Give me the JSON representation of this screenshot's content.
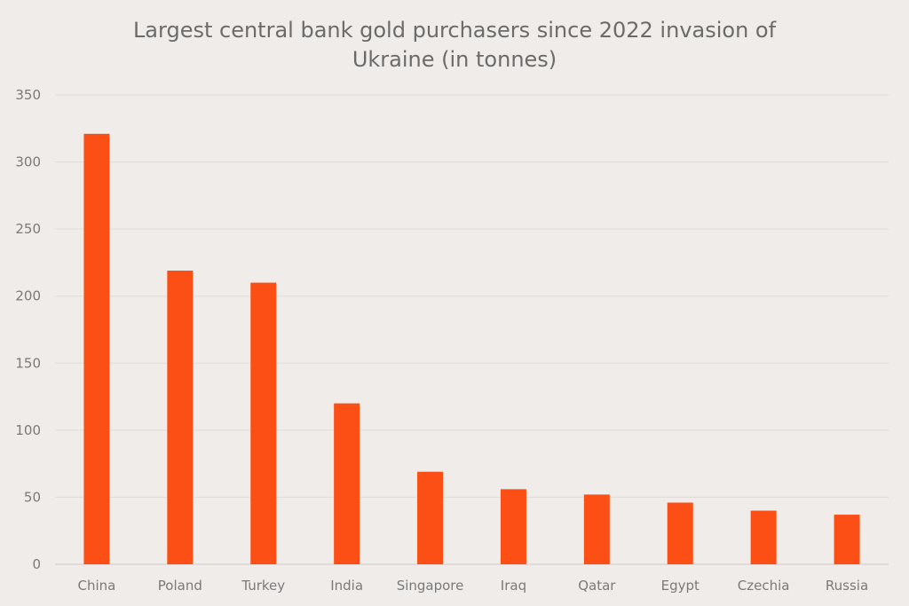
{
  "chart_data": {
    "type": "bar",
    "title_lines": [
      "Largest central bank gold purchasers since 2022 invasion of",
      "Ukraine (in tonnes)"
    ],
    "categories": [
      "China",
      "Poland",
      "Turkey",
      "India",
      "Singapore",
      "Iraq",
      "Qatar",
      "Egypt",
      "Czechia",
      "Russia"
    ],
    "values": [
      321,
      219,
      210,
      120,
      69,
      56,
      52,
      46,
      40,
      37
    ],
    "ylim": [
      0,
      350
    ],
    "yticks": [
      0,
      50,
      100,
      150,
      200,
      250,
      300,
      350
    ],
    "grid": true,
    "bar_color": "#fb4f16",
    "xlabel": "",
    "ylabel": ""
  }
}
